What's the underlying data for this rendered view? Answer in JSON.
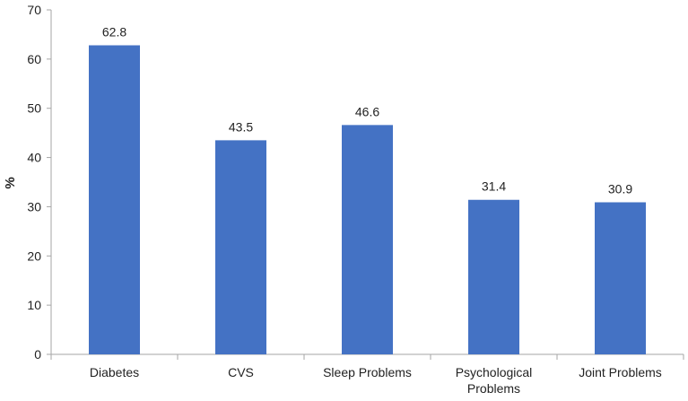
{
  "chart_data": {
    "type": "bar",
    "categories": [
      "Diabetes",
      "CVS",
      "Sleep Problems",
      "Psychological Problems",
      "Joint Problems"
    ],
    "category_lines": [
      [
        "Diabetes"
      ],
      [
        "CVS"
      ],
      [
        "Sleep Problems"
      ],
      [
        "Psychological",
        "Problems"
      ],
      [
        "Joint Problems"
      ]
    ],
    "values": [
      62.8,
      43.5,
      46.6,
      31.4,
      30.9
    ],
    "data_labels": [
      "62.8",
      "43.5",
      "46.6",
      "31.4",
      "30.9"
    ],
    "title": "",
    "xlabel": "",
    "ylabel": "%",
    "ylim": [
      0,
      70
    ],
    "yticks": [
      0,
      10,
      20,
      30,
      40,
      50,
      60,
      70
    ],
    "grid": false,
    "legend": "none",
    "bar_color": "#4472C4",
    "axis_color": "#A6A6A6"
  }
}
